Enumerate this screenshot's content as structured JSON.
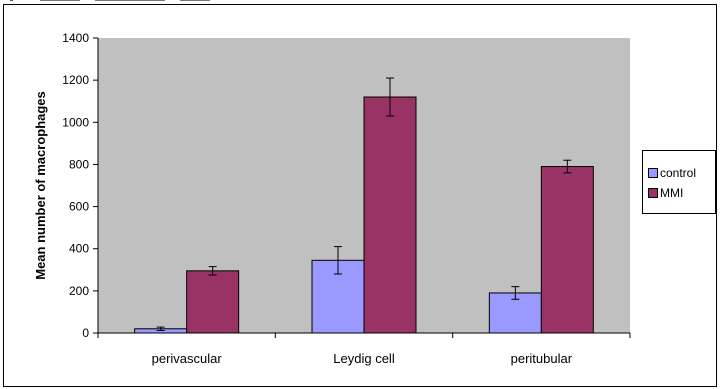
{
  "chart_data": {
    "type": "bar",
    "title": "",
    "xlabel": "",
    "ylabel": "Mean number of macrophages",
    "ylim": [
      0,
      1400
    ],
    "yticks": [
      "0",
      "200",
      "400",
      "600",
      "800",
      "1000",
      "1200",
      "1400"
    ],
    "categories": [
      "perivascular",
      "Leydig cell",
      "peritubular"
    ],
    "series": [
      {
        "name": "control",
        "values": [
          20,
          345,
          190
        ],
        "errors": [
          8,
          65,
          30
        ],
        "color": "#9999ff"
      },
      {
        "name": "MMI",
        "values": [
          295,
          1120,
          790
        ],
        "errors": [
          20,
          90,
          30
        ],
        "color": "#993366"
      }
    ],
    "grid": false,
    "plot_background": "#c0c0c0",
    "legend_position": "right"
  }
}
